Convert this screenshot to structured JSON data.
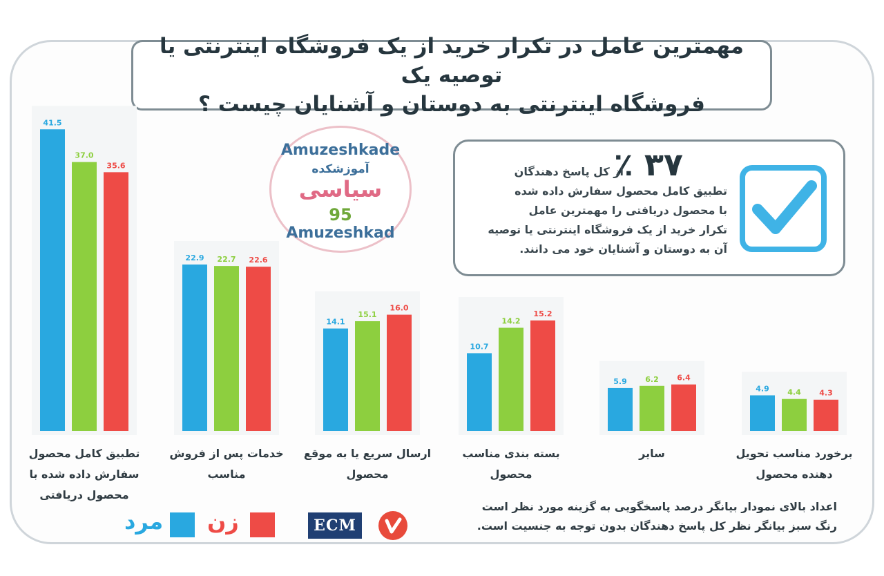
{
  "title": {
    "line1": "مهمترین عامل در تکرار خرید از یک فروشگاه اینترنتی یا توصیه یک",
    "line2": "فروشگاه اینترنتی به دوستان و آشنایان چیست ؟"
  },
  "stat": {
    "percent": "٣٧ ٪",
    "lines": [
      "از کل پاسخ دهندگان",
      "تطبیق کامل محصول سفارش داده شده",
      "با محصول دریافتی را مهمترین عامل",
      "تکرار خرید از یک فروشگاه اینترنتی یا توصیه",
      "آن به دوستان و آشنایان خود می دانند."
    ],
    "icon": "checkbox-check-icon"
  },
  "watermark": {
    "top_text": "Amuzeshkade",
    "persian_text": "آموزشکده",
    "brand_text": "سیاسی",
    "number": "95",
    "bottom_text": "Amuzeshkad"
  },
  "chart_data": {
    "type": "bar",
    "categories": [
      "تطبیق کامل محصول سفارش داده شده با محصول دریافتی",
      "خدمات پس از فروش مناسب",
      "ارسال سریع یا به موقع محصول",
      "بسته بندی مناسب محصول",
      "سایر",
      "برخورد مناسب تحویل دهنده محصول"
    ],
    "category_label_lines": [
      [
        "تطبیق کامل محصول",
        "سفارش داده شده با",
        "محصول دریافتی"
      ],
      [
        "خدمات پس از فروش",
        "مناسب"
      ],
      [
        "ارسال سریع یا به موقع",
        "محصول"
      ],
      [
        "بسته بندی مناسب محصول"
      ],
      [
        "سایر"
      ],
      [
        "برخورد مناسب تحویل",
        "دهنده محصول"
      ]
    ],
    "series": [
      {
        "name": "مرد",
        "color": "#29a8e0",
        "values": [
          41.5,
          22.9,
          14.1,
          10.7,
          5.9,
          4.9
        ],
        "labels": [
          "41.5",
          "22.9",
          "14.1",
          "10.7",
          "5.9",
          "4.9"
        ]
      },
      {
        "color": "#8dcf3f",
        "values": [
          37.0,
          22.7,
          15.1,
          14.2,
          6.2,
          4.4
        ],
        "labels": [
          "37.0",
          "22.7",
          "15.1",
          "14.2",
          "6.2",
          "4.4"
        ]
      },
      {
        "name": "زن",
        "color": "#ee4b46",
        "values": [
          35.6,
          22.6,
          16.0,
          15.2,
          6.4,
          4.3
        ],
        "labels": [
          "35.6",
          "22.6",
          "16.0",
          "15.2",
          "6.4",
          "4.3"
        ]
      }
    ],
    "ylim": [
      0,
      42
    ],
    "grid": false,
    "legend": "bottom-left"
  },
  "legend": {
    "male": "مرد",
    "female": "زن",
    "male_color": "#29a8e0",
    "female_color": "#ee4b46"
  },
  "brand": {
    "ecm": "ECM",
    "logo_icon": "red-circle-logo-icon"
  },
  "footnote": {
    "line1": "اعداد بالای نمودار بیانگر درصد پاسخگویی به گزینه مورد نظر است",
    "line2": "رنگ سبز بیانگر نظر کل پاسخ دهندگان بدون توجه به جنسیت است."
  }
}
